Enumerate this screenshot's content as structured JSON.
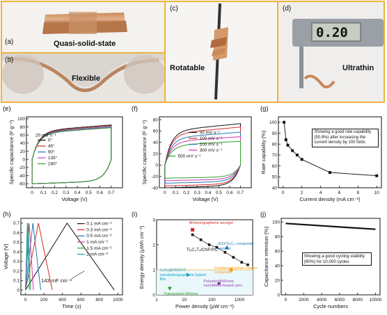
{
  "photos": {
    "a": {
      "label": "(a)",
      "caption": "Quasi-solid-state"
    },
    "b": {
      "label": "(b)",
      "caption": "Flexible"
    },
    "c": {
      "label": "(c)",
      "caption": "Rotatable"
    },
    "d": {
      "label": "(d)",
      "caption": "Ultrathin",
      "display": "0.20"
    }
  },
  "colors": {
    "frame": "#f0b23a"
  },
  "chart_data": [
    {
      "id": "e",
      "type": "line",
      "panel_label": "(e)",
      "xlabel": "Voltage (V)",
      "ylabel": "Specific capacitance (F g⁻¹)",
      "xlim": [
        -0.05,
        0.8
      ],
      "ylim": [
        -70,
        105
      ],
      "xticks": [
        0.0,
        0.1,
        0.2,
        0.3,
        0.4,
        0.5,
        0.6,
        0.7
      ],
      "yticks": [
        -60,
        -40,
        -20,
        0,
        20,
        40,
        60,
        80,
        100
      ],
      "legend_title": "20 mV s⁻¹",
      "series": [
        {
          "name": "0°",
          "color": "#111111",
          "top": 85
        },
        {
          "name": "45°",
          "color": "#d62728",
          "top": 83
        },
        {
          "name": "90°",
          "color": "#1f77b4",
          "top": 81
        },
        {
          "name": "135°",
          "color": "#d633b3",
          "top": 79
        },
        {
          "name": "180°",
          "color": "#2ca02c",
          "top": 78
        }
      ]
    },
    {
      "id": "f",
      "type": "line",
      "panel_label": "(f)",
      "xlabel": "Voltage (V)",
      "ylabel": "Specific capacitance (F g⁻¹)",
      "xlim": [
        -0.05,
        0.8
      ],
      "ylim": [
        -40,
        85
      ],
      "xticks": [
        0.0,
        0.1,
        0.2,
        0.3,
        0.4,
        0.5,
        0.6,
        0.7
      ],
      "yticks": [
        -40,
        -20,
        0,
        20,
        40,
        60,
        80
      ],
      "series": [
        {
          "name": "50 mV s⁻¹",
          "color": "#111111",
          "amp": 73
        },
        {
          "name": "100 mV s⁻¹",
          "color": "#d62728",
          "amp": 67
        },
        {
          "name": "200 mV s⁻¹",
          "color": "#1f77b4",
          "amp": 58
        },
        {
          "name": "300 mV s⁻¹",
          "color": "#d633b3",
          "amp": 50
        },
        {
          "name": "500 mV s⁻¹",
          "color": "#2ca02c",
          "amp": 42
        }
      ]
    },
    {
      "id": "g",
      "type": "line",
      "panel_label": "(g)",
      "xlabel": "Current density (mA cm⁻²)",
      "ylabel": "Rate capability (%)",
      "xlim": [
        -0.5,
        10.5
      ],
      "ylim": [
        40,
        105
      ],
      "xticks": [
        0,
        2,
        4,
        6,
        8,
        10
      ],
      "yticks": [
        40,
        50,
        60,
        70,
        80,
        90,
        100
      ],
      "x": [
        0.1,
        0.3,
        0.5,
        1,
        1.5,
        2,
        5,
        10
      ],
      "y": [
        100,
        84,
        79,
        74,
        70,
        66,
        54,
        51
      ],
      "annotation": "Showing a good rate capability (50.9%) after increasing the current density by 100 folds"
    },
    {
      "id": "h",
      "type": "line",
      "panel_label": "(h)",
      "xlabel": "Time (s)",
      "ylabel": "Voltage (V)",
      "xlim": [
        -50,
        1050
      ],
      "ylim": [
        -0.05,
        0.75
      ],
      "xticks": [
        0,
        200,
        400,
        600,
        800,
        1000
      ],
      "yticks": [
        0.0,
        0.1,
        0.2,
        0.3,
        0.4,
        0.5,
        0.6,
        0.7
      ],
      "series": [
        {
          "name": "0.1 mA cm⁻²",
          "color": "#111111",
          "tpeak": 450,
          "tend": 960
        },
        {
          "name": "0.3 mA cm⁻²",
          "color": "#d62728",
          "tpeak": 140,
          "tend": 290
        },
        {
          "name": "0.5 mA cm⁻²",
          "color": "#1f77b4",
          "tpeak": 80,
          "tend": 165
        },
        {
          "name": "1 mA cm⁻²",
          "color": "#d633b3",
          "tpeak": 40,
          "tend": 85
        },
        {
          "name": "1.5 mA cm⁻²",
          "color": "#2ca02c",
          "tpeak": 26,
          "tend": 55
        },
        {
          "name": "2 mA cm⁻²",
          "color": "#17a2b8",
          "tpeak": 20,
          "tend": 42
        }
      ],
      "annotation": "143 mF cm⁻²"
    },
    {
      "id": "i",
      "type": "scatter",
      "panel_label": "(i)",
      "xlabel": "Power density (μW cm⁻²)",
      "ylabel": "Energy density (μWh cm⁻²)",
      "xlog": true,
      "xlim": [
        1,
        3000
      ],
      "ylim": [
        0,
        3
      ],
      "xticks": [
        1,
        10,
        100,
        1000
      ],
      "xticklabels": [
        "1",
        "10",
        "100",
        "1000"
      ],
      "yticks": [
        0,
        1,
        2,
        3
      ],
      "this_work": {
        "label": "Ti₃C₂Tₓ/CNF/PC",
        "x": [
          20,
          40,
          80,
          150,
          300,
          600,
          1200,
          2000
        ],
        "y": [
          2.4,
          2.2,
          2.0,
          1.9,
          1.7,
          1.5,
          1.3,
          1.2
        ]
      },
      "references": [
        {
          "label": "MXene/graphene aerogel",
          "x": 20,
          "y": 2.6,
          "color": "#d62728",
          "marker": "square"
        },
        {
          "label": "rGO/Ti₃C₂ composite aerogel",
          "x": 350,
          "y": 1.9,
          "color": "#1f77b4",
          "marker": "triangle"
        },
        {
          "label": "Graphene/carbon nanotube composite",
          "x": 500,
          "y": 1.0,
          "color": "#f39c12",
          "marker": "circle"
        },
        {
          "label": "V₂O₅@PEDOT nanobelts/graphene hybrid film",
          "x": 14,
          "y": 0.8,
          "color": "#17a2b8",
          "marker": "triangle-right"
        },
        {
          "label": "Polyster@MXene nanofibers-based yarn",
          "x": 180,
          "y": 0.45,
          "color": "#8e44ad",
          "marker": "diamond"
        },
        {
          "label": "Transparent MXene",
          "x": 3,
          "y": 0.25,
          "color": "#2ca02c",
          "marker": "triangle-down"
        }
      ]
    },
    {
      "id": "j",
      "type": "line",
      "panel_label": "(j)",
      "xlabel": "Cycle numbers",
      "ylabel": "Capacitance retention (%)",
      "xlim": [
        -500,
        10500
      ],
      "ylim": [
        0,
        105
      ],
      "xticks": [
        0,
        2000,
        4000,
        6000,
        8000,
        10000
      ],
      "yticks": [
        0,
        20,
        40,
        60,
        80,
        100
      ],
      "x": [
        0,
        10000
      ],
      "y": [
        98,
        90
      ],
      "annotation": "Showing a good cycling stability (90%) for 10,000 cycles"
    }
  ]
}
